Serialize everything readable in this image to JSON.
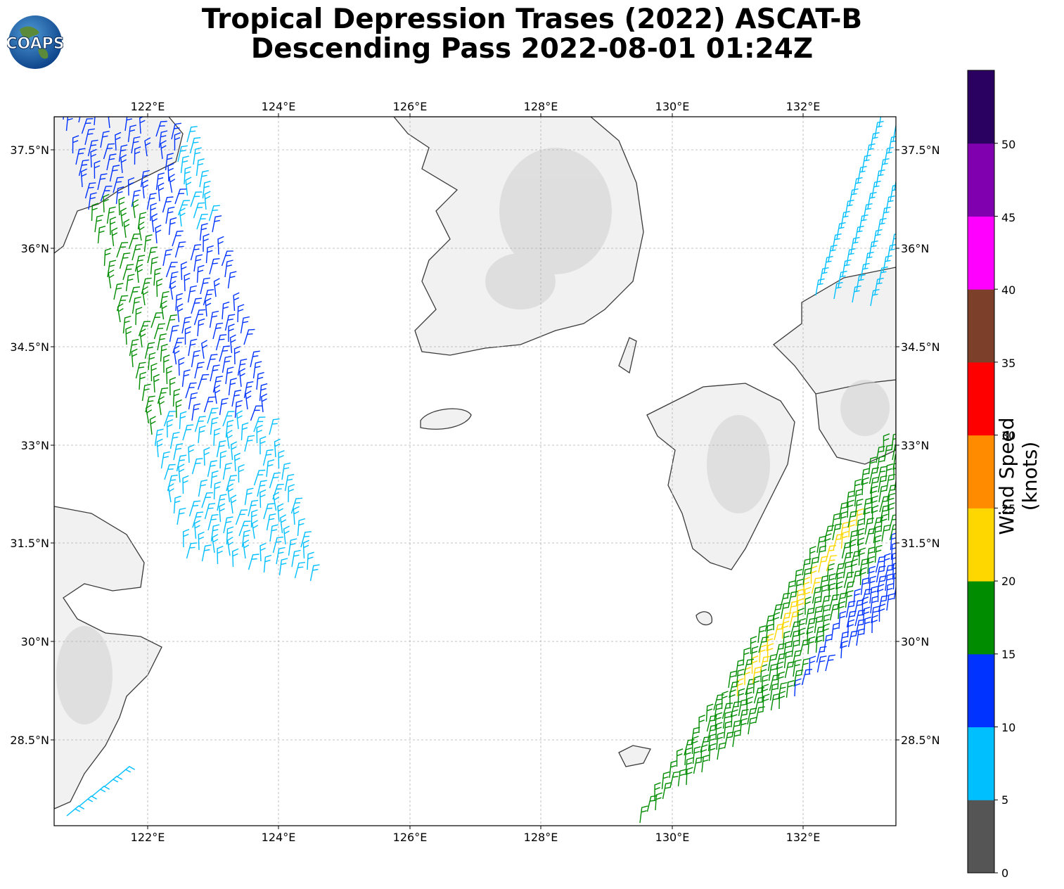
{
  "title": {
    "line1": "Tropical Depression Trases (2022) ASCAT-B",
    "line2": "Descending Pass 2022-08-01 01:24Z"
  },
  "logo": {
    "text": "COAPS"
  },
  "map": {
    "lon_ticks": [
      "122°E",
      "124°E",
      "126°E",
      "128°E",
      "130°E",
      "132°E"
    ],
    "lat_ticks": [
      "37.5°N",
      "36°N",
      "34.5°N",
      "33°N",
      "31.5°N",
      "30°N",
      "28.5°N"
    ],
    "gridlines": true
  },
  "colorbar": {
    "label": "Wind Speed (knots)",
    "ticks": [
      "0",
      "5",
      "10",
      "15",
      "20",
      "25",
      "30",
      "35",
      "40",
      "45",
      "50"
    ],
    "colors": [
      "#555555",
      "#00bfff",
      "#0033ff",
      "#008c00",
      "#ffd700",
      "#ff8c00",
      "#ff0000",
      "#7b3f2a",
      "#ff00ff",
      "#8000b0",
      "#2a0060"
    ]
  }
}
